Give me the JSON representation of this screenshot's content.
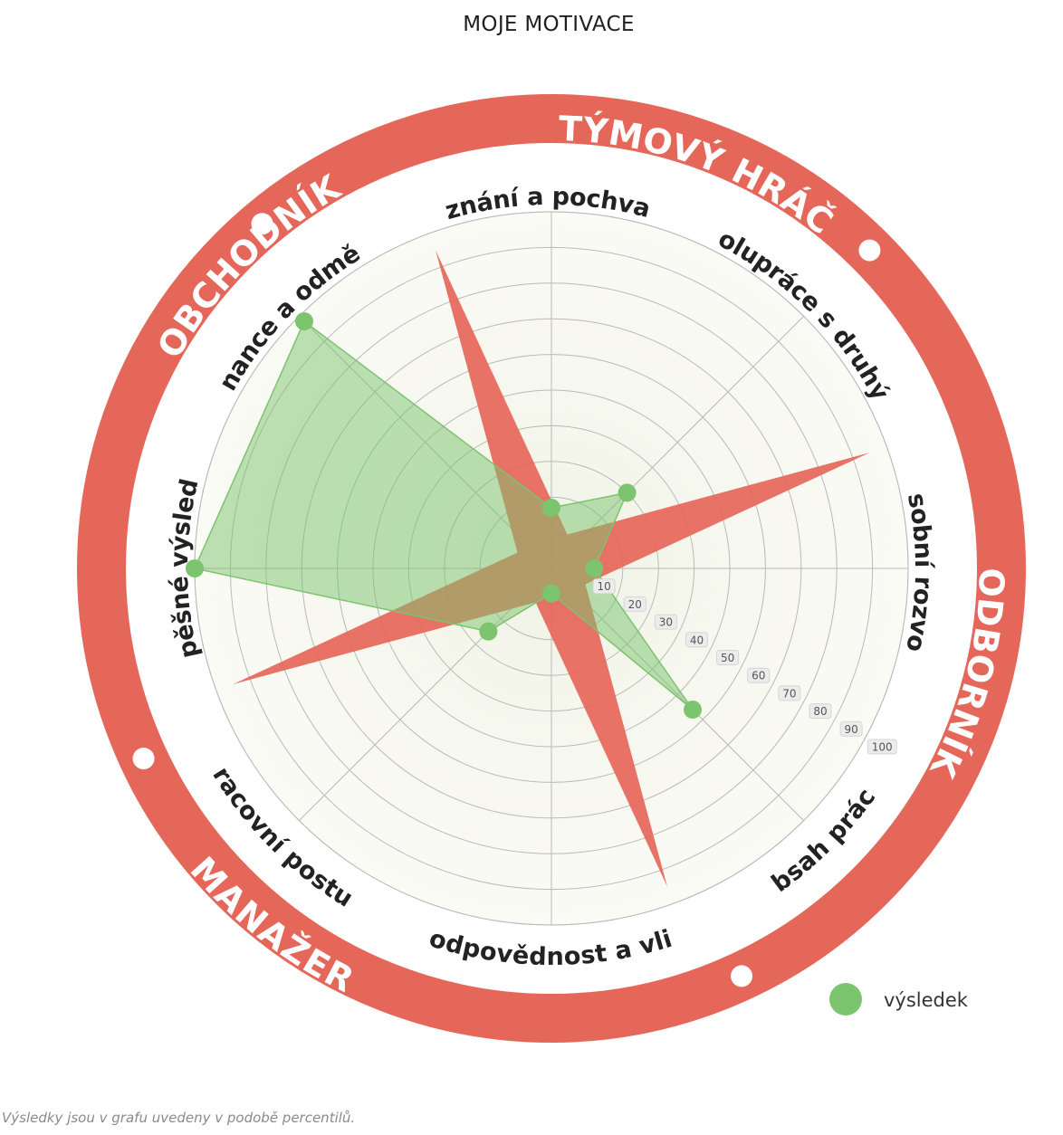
{
  "chart_data": {
    "type": "radar",
    "title": "MOJE MOTIVACE",
    "axes": [
      "uznání a pochvala",
      "spolupráce s druhými",
      "osobní rozvoj",
      "obsah práce",
      "zodpovědnost a vliv",
      "pracovní postup",
      "úspěšné výsledky",
      "finance a odměna"
    ],
    "radial_ticks": [
      10,
      20,
      30,
      40,
      50,
      60,
      70,
      80,
      90,
      100
    ],
    "rmax": 100,
    "series": [
      {
        "name": "výsledek",
        "values": [
          17,
          30,
          12,
          56,
          7,
          25,
          100,
          98
        ]
      }
    ],
    "legend_position": "bottom-right",
    "ring_labels": [
      "TÝMOVÝ HRÁČ",
      "ODBORNÍK",
      "MANAŽER",
      "OBCHODNÍK"
    ],
    "colors": {
      "ring": "#e5675a",
      "star": "#e5675a",
      "series": "#7cc46e"
    }
  },
  "footnote": "Výsledky jsou v grafu uvedeny v podobě percentilů."
}
